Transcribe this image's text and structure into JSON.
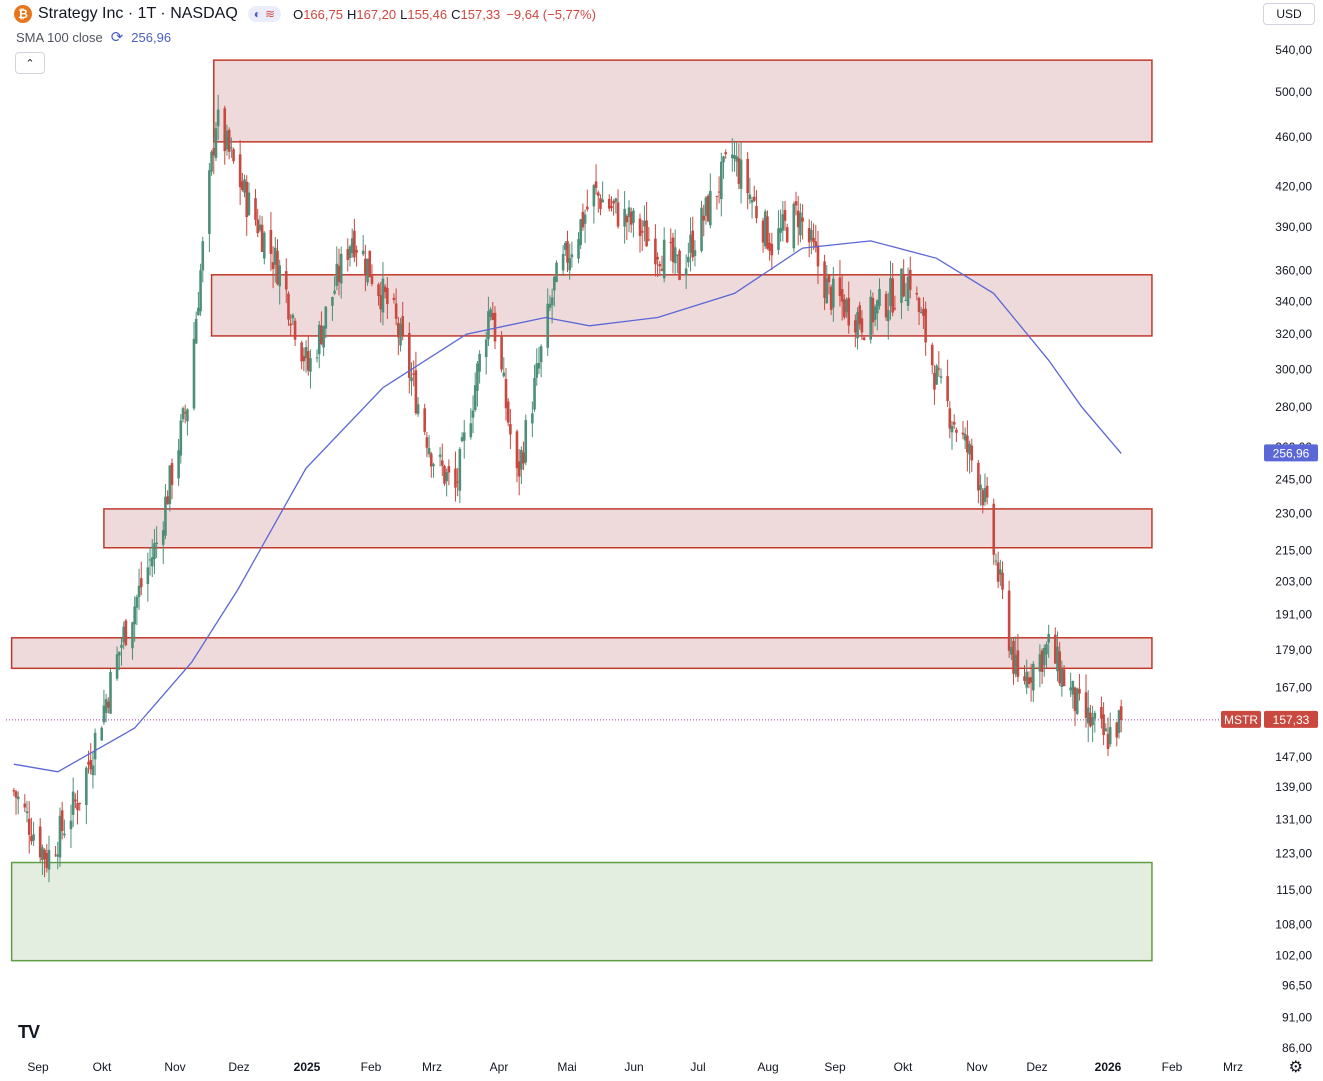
{
  "header": {
    "symbol_logo": "₿",
    "title": "Strategy Inc · 1T · NASDAQ",
    "mode_icons": [
      "◐",
      "≋"
    ],
    "ohlc": {
      "o_label": "O",
      "o": "166,75",
      "h_label": "H",
      "h": "167,20",
      "l_label": "L",
      "l": "155,46",
      "c_label": "C",
      "c": "157,33",
      "change": "−9,64 (−5,77%)"
    },
    "currency": "USD",
    "collapse_icon": "⌃"
  },
  "indicator": {
    "label": "SMA 100 close",
    "value": "256,96",
    "icon": "refresh-icon"
  },
  "footer": {
    "logo": "TV",
    "settings_icon": "⚙"
  },
  "colors": {
    "up": "#4d8f78",
    "down": "#c9483f",
    "sma": "#5b67d6",
    "resistance_fill": "#eedadb",
    "resistance_stroke": "#c0392b",
    "support_fill": "#e4eee0",
    "support_stroke": "#5f9e45"
  },
  "chart_data": {
    "type": "candlestick",
    "scale": "log",
    "x_axis_labels": [
      "Sep",
      "Okt",
      "Nov",
      "Dez",
      "2025",
      "Feb",
      "Mrz",
      "Apr",
      "Mai",
      "Jun",
      "Jul",
      "Aug",
      "Sep",
      "Okt",
      "Nov",
      "Dez",
      "2026",
      "Feb",
      "Mrz"
    ],
    "y_axis_labels": [
      "540,00",
      "500,00",
      "460,00",
      "420,00",
      "390,00",
      "360,00",
      "340,00",
      "320,00",
      "300,00",
      "280,00",
      "260,00",
      "245,00",
      "230,00",
      "215,00",
      "203,00",
      "191,00",
      "179,00",
      "167,00",
      "147,00",
      "139,00",
      "131,00",
      "123,00",
      "115,00",
      "108,00",
      "102,00",
      "96,50",
      "91,00",
      "86,00"
    ],
    "y_range": [
      86,
      545
    ],
    "last_price": {
      "symbol": "MSTR",
      "label": "157,33",
      "value": 157.33
    },
    "sma_last": {
      "label": "256,96",
      "value": 256.96
    },
    "zones": [
      {
        "kind": "resistance",
        "low": 456,
        "high": 530,
        "from": "2024-11-20",
        "to": "2026-01-21"
      },
      {
        "kind": "resistance",
        "low": 319,
        "high": 357,
        "from": "2024-11-19",
        "to": "2026-01-21"
      },
      {
        "kind": "resistance",
        "low": 216,
        "high": 232,
        "from": "2024-10-01",
        "to": "2026-01-21"
      },
      {
        "kind": "resistance",
        "low": 173,
        "high": 183,
        "from": "2024-08-20",
        "to": "2026-01-21"
      },
      {
        "kind": "support",
        "low": 101,
        "high": 121,
        "from": "2024-08-20",
        "to": "2026-01-21"
      }
    ],
    "price_anchors": [
      {
        "date": "2024-08-21",
        "close": 138
      },
      {
        "date": "2024-09-05",
        "close": 122
      },
      {
        "date": "2024-09-20",
        "close": 137
      },
      {
        "date": "2024-10-10",
        "close": 184
      },
      {
        "date": "2024-10-25",
        "close": 218
      },
      {
        "date": "2024-11-08",
        "close": 282
      },
      {
        "date": "2024-11-13",
        "close": 345
      },
      {
        "date": "2024-11-21",
        "close": 475
      },
      {
        "date": "2024-12-05",
        "close": 410
      },
      {
        "date": "2024-12-20",
        "close": 360
      },
      {
        "date": "2025-01-02",
        "close": 300
      },
      {
        "date": "2025-01-22",
        "close": 385
      },
      {
        "date": "2025-02-10",
        "close": 330
      },
      {
        "date": "2025-02-28",
        "close": 255
      },
      {
        "date": "2025-03-10",
        "close": 240
      },
      {
        "date": "2025-03-26",
        "close": 340
      },
      {
        "date": "2025-04-07",
        "close": 245
      },
      {
        "date": "2025-04-24",
        "close": 350
      },
      {
        "date": "2025-05-12",
        "close": 415
      },
      {
        "date": "2025-06-04",
        "close": 385
      },
      {
        "date": "2025-06-20",
        "close": 360
      },
      {
        "date": "2025-07-14",
        "close": 445
      },
      {
        "date": "2025-08-01",
        "close": 378
      },
      {
        "date": "2025-08-13",
        "close": 400
      },
      {
        "date": "2025-08-27",
        "close": 345
      },
      {
        "date": "2025-09-12",
        "close": 328
      },
      {
        "date": "2025-10-03",
        "close": 355
      },
      {
        "date": "2025-10-16",
        "close": 290
      },
      {
        "date": "2025-11-04",
        "close": 245
      },
      {
        "date": "2025-11-21",
        "close": 168
      },
      {
        "date": "2025-12-05",
        "close": 180
      },
      {
        "date": "2025-12-19",
        "close": 160
      },
      {
        "date": "2025-12-31",
        "close": 152
      },
      {
        "date": "2026-01-07",
        "close": 157.33
      }
    ],
    "sma_anchors": [
      {
        "date": "2024-08-21",
        "value": 145
      },
      {
        "date": "2024-09-10",
        "value": 143
      },
      {
        "date": "2024-10-15",
        "value": 155
      },
      {
        "date": "2024-11-10",
        "value": 175
      },
      {
        "date": "2024-12-01",
        "value": 200
      },
      {
        "date": "2025-01-01",
        "value": 250
      },
      {
        "date": "2025-02-05",
        "value": 290
      },
      {
        "date": "2025-03-15",
        "value": 320
      },
      {
        "date": "2025-04-20",
        "value": 330
      },
      {
        "date": "2025-05-10",
        "value": 325
      },
      {
        "date": "2025-06-10",
        "value": 330
      },
      {
        "date": "2025-07-15",
        "value": 345
      },
      {
        "date": "2025-08-15",
        "value": 375
      },
      {
        "date": "2025-09-15",
        "value": 380
      },
      {
        "date": "2025-10-15",
        "value": 368
      },
      {
        "date": "2025-11-10",
        "value": 345
      },
      {
        "date": "2025-12-05",
        "value": 305
      },
      {
        "date": "2025-12-20",
        "value": 280
      },
      {
        "date": "2026-01-07",
        "value": 256.96
      }
    ]
  }
}
